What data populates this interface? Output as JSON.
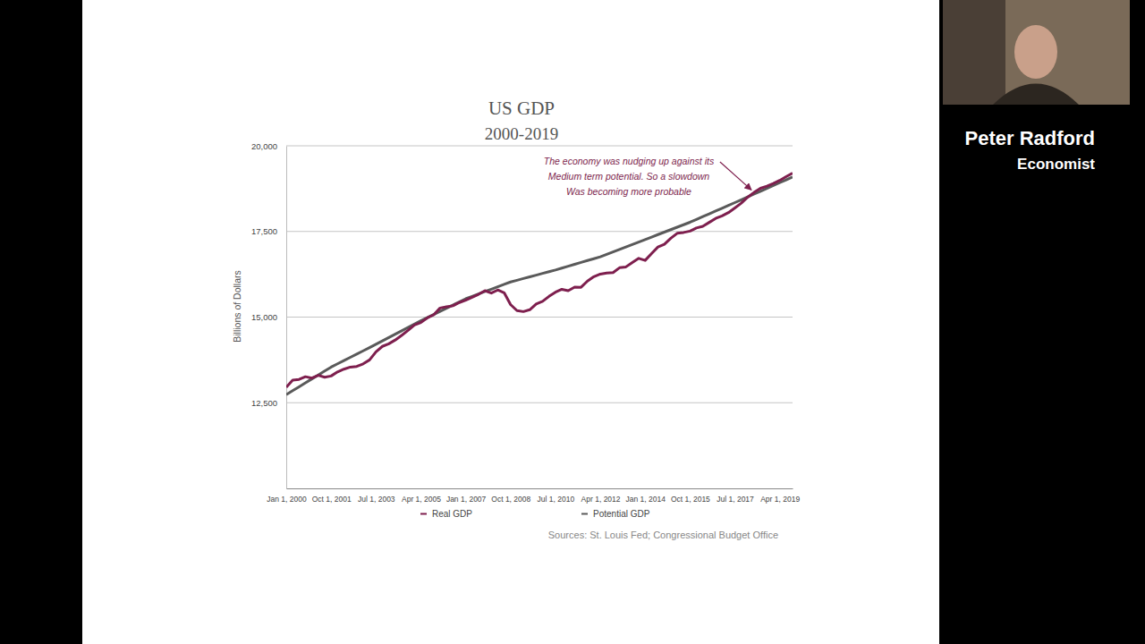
{
  "chart_data": {
    "type": "line",
    "title": "US GDP",
    "subtitle": "2000-2019",
    "y_label": "Billions of Dollars",
    "source": "Sources: St. Louis Fed; Congressional Budget Office",
    "annotation": [
      "The economy was nudging up against its",
      "Medium term potential.  So a slowdown",
      "Was becoming more probable"
    ],
    "categories": [
      "Jan 1, 2000",
      null,
      null,
      null,
      null,
      null,
      null,
      "Oct 1, 2001",
      null,
      null,
      null,
      null,
      null,
      null,
      "Jul 1, 2003",
      null,
      null,
      null,
      null,
      null,
      null,
      "Apr 1, 2005",
      null,
      null,
      null,
      null,
      null,
      null,
      "Jan 1, 2007",
      null,
      null,
      null,
      null,
      null,
      null,
      "Oct 1, 2008",
      null,
      null,
      null,
      null,
      null,
      null,
      "Jul 1, 2010",
      null,
      null,
      null,
      null,
      null,
      null,
      "Apr 1, 2012",
      null,
      null,
      null,
      null,
      null,
      null,
      "Jan 1, 2014",
      null,
      null,
      null,
      null,
      null,
      null,
      "Oct 1, 2015",
      null,
      null,
      null,
      null,
      null,
      null,
      "Jul 1, 2017",
      null,
      null,
      null,
      null,
      null,
      null,
      "Apr 1, 2019",
      null,
      null
    ],
    "series": [
      {
        "name": "Real GDP",
        "color": "#7e1f4e",
        "values": [
          12950,
          13160,
          13180,
          13260,
          13220,
          13300,
          13245,
          13280,
          13400,
          13480,
          13540,
          13560,
          13635,
          13750,
          13985,
          14145,
          14220,
          14330,
          14465,
          14610,
          14770,
          14840,
          14975,
          15065,
          15265,
          15300,
          15330,
          15425,
          15495,
          15580,
          15665,
          15770,
          15700,
          15790,
          15710,
          15365,
          15190,
          15160,
          15215,
          15380,
          15460,
          15605,
          15725,
          15810,
          15770,
          15875,
          15870,
          16050,
          16180,
          16255,
          16285,
          16300,
          16440,
          16465,
          16595,
          16715,
          16655,
          16855,
          17045,
          17125,
          17300,
          17445,
          17470,
          17510,
          17600,
          17650,
          17765,
          17880,
          17955,
          18050,
          18185,
          18325,
          18500,
          18640,
          18760,
          18820,
          18900,
          18990,
          19100,
          19200
        ]
      },
      {
        "name": "Potential GDP",
        "color": "#5a5a5a",
        "values": [
          12735,
          12850,
          12965,
          13080,
          13195,
          13310,
          13425,
          13540,
          13635,
          13730,
          13825,
          13920,
          14015,
          14110,
          14205,
          14303,
          14401,
          14499,
          14597,
          14695,
          14793,
          14891,
          14983,
          15075,
          15167,
          15259,
          15351,
          15443,
          15535,
          15605,
          15675,
          15745,
          15815,
          15885,
          15955,
          16025,
          16075,
          16125,
          16175,
          16225,
          16275,
          16325,
          16375,
          16430,
          16485,
          16540,
          16595,
          16650,
          16705,
          16760,
          16832,
          16904,
          16976,
          17048,
          17120,
          17192,
          17264,
          17336,
          17408,
          17480,
          17552,
          17624,
          17696,
          17768,
          17850,
          17932,
          18014,
          18096,
          18178,
          18260,
          18342,
          18425,
          18508,
          18591,
          18674,
          18757,
          18840,
          18923,
          19006,
          19089
        ]
      }
    ],
    "ylim": [
      10000,
      20000
    ],
    "yticks": [
      {
        "value": 12500,
        "label": "12,500"
      },
      {
        "value": 15000,
        "label": "15,000"
      },
      {
        "value": 17500,
        "label": "17,500"
      },
      {
        "value": 20000,
        "label": "20,000"
      }
    ],
    "grid": true,
    "legend": "bottom"
  },
  "overlay": {
    "name": "Peter Radford",
    "role": "Economist"
  }
}
